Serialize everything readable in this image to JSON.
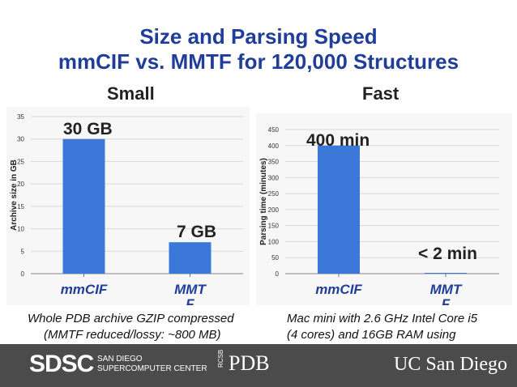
{
  "slide": {
    "title_line1": "Size and Parsing Speed",
    "title_line2": "mmCIF vs. MMTF for 120,000 Structures",
    "left_heading": "Small",
    "right_heading": "Fast",
    "left_caption_line1": "Whole PDB archive GZIP compressed",
    "left_caption_line2": "(MMTF reduced/lossy: ~800 MB)",
    "right_caption_line1": "Mac mini with 2.6 GHz Intel Core i5",
    "right_caption_line2": "(4 cores) and 16GB RAM using"
  },
  "footer": {
    "sdsc_logo": "SDSC",
    "sdsc_line1": "SAN DIEGO",
    "sdsc_line2": "SUPERCOMPUTER CENTER",
    "rcsb_small": "RCSB",
    "pdb_logo": "PDB",
    "ucsd_logo": "UC San Diego"
  },
  "colors": {
    "title": "#1f3d99",
    "bar": "#3c78d8",
    "footer_bg": "#4b4b4b"
  },
  "chart_data": [
    {
      "type": "bar",
      "categories": [
        "mmCIF",
        "MMTF"
      ],
      "values": [
        30,
        7
      ],
      "data_labels": [
        "30 GB",
        "7 GB"
      ],
      "ylabel": "Archive size in GB",
      "ylim": [
        0,
        35
      ],
      "yticks": [
        0,
        5,
        10,
        15,
        20,
        25,
        30,
        35
      ],
      "grid": true
    },
    {
      "type": "bar",
      "categories": [
        "mmCIF",
        "MMTF"
      ],
      "values": [
        400,
        2
      ],
      "data_labels": [
        "400 min",
        "< 2 min"
      ],
      "ylabel": "Parsing time (minutes)",
      "ylim": [
        0,
        450
      ],
      "yticks": [
        0,
        50,
        100,
        150,
        200,
        250,
        300,
        350,
        400,
        450
      ],
      "grid": true
    }
  ]
}
